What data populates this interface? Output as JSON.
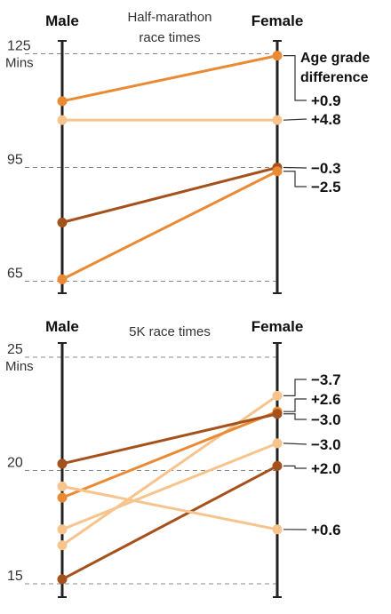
{
  "colors": {
    "light": "#f6c48c",
    "mid": "#ea8a34",
    "dark": "#a5511c",
    "axis": "#222222",
    "grid": "#888888"
  },
  "chart_data": [
    {
      "type": "line",
      "title": "Half-marathon race times",
      "x_labels": [
        "Male",
        "Female"
      ],
      "ylabel": "Mins",
      "yticks": [
        125,
        95,
        65
      ],
      "ylim": [
        62,
        129
      ],
      "annotation_title": [
        "Age grade",
        "difference"
      ],
      "series": [
        {
          "male": 112.5,
          "female": 124.5,
          "diff": "+0.9",
          "color": "mid"
        },
        {
          "male": 107.5,
          "female": 107.5,
          "diff": "+4.8",
          "color": "light"
        },
        {
          "male": 80.5,
          "female": 95.0,
          "diff": "−0.3",
          "color": "dark"
        },
        {
          "male": 65.5,
          "female": 94.0,
          "diff": "−2.5",
          "color": "mid"
        }
      ]
    },
    {
      "type": "line",
      "title": "5K race times",
      "x_labels": [
        "Male",
        "Female"
      ],
      "ylabel": "Mins",
      "yticks": [
        25,
        20,
        15
      ],
      "ylim": [
        14.5,
        26.5
      ],
      "series": [
        {
          "male": 16.7,
          "female": 23.3,
          "diff": "−3.7",
          "color": "light"
        },
        {
          "male": 18.8,
          "female": 22.6,
          "diff": "+2.6",
          "color": "mid"
        },
        {
          "male": 20.3,
          "female": 22.5,
          "diff": "−3.0",
          "color": "dark"
        },
        {
          "male": 17.4,
          "female": 21.2,
          "diff": "−3.0",
          "color": "light"
        },
        {
          "male": 15.2,
          "female": 20.2,
          "diff": "+2.0",
          "color": "dark"
        },
        {
          "male": 19.3,
          "female": 17.4,
          "diff": "+0.6",
          "color": "light"
        }
      ]
    }
  ]
}
